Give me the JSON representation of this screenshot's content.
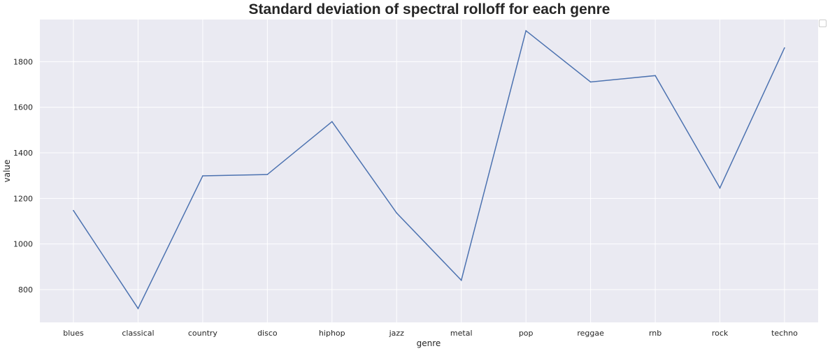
{
  "chart_data": {
    "type": "line",
    "title": "Standard deviation of spectral rolloff for each genre",
    "xlabel": "genre",
    "ylabel": "value",
    "categories": [
      "blues",
      "classical",
      "country",
      "disco",
      "hiphop",
      "jazz",
      "metal",
      "pop",
      "reggae",
      "rnb",
      "rock",
      "techno"
    ],
    "values": [
      1147,
      717,
      1299,
      1305,
      1537,
      1136,
      841,
      1936,
      1711,
      1739,
      1246,
      1861
    ],
    "yticks": [
      800,
      1000,
      1200,
      1400,
      1600,
      1800
    ],
    "ylim": [
      656,
      1985
    ],
    "grid": true,
    "legend": "top-right (empty)",
    "colors": {
      "line": "#4c72b0",
      "background": "#eaeaf2",
      "grid": "#ffffff",
      "text": "#262626"
    }
  }
}
